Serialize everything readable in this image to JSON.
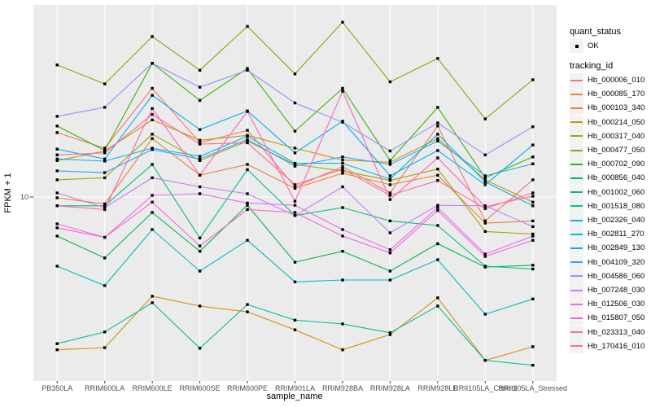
{
  "figure": {
    "background": "#FFFFFF",
    "panel_background": "#EBEBEB",
    "grid_color": "#FFFFFF",
    "point_color": "#000000",
    "tick_color": "#333333",
    "tick_label_color": "#4D4D4D"
  },
  "axes": {
    "x_title": "sample_name",
    "y_title": "FPKM + 1",
    "y_tick_labels": [
      "10"
    ]
  },
  "legend": {
    "quant_status": {
      "title": "quant_status",
      "items": [
        {
          "label": "OK",
          "symbol": "black-point"
        }
      ]
    },
    "tracking": {
      "title": "tracking_id"
    }
  },
  "chart_data": {
    "type": "line",
    "title": "",
    "xlabel": "sample_name",
    "ylabel": "FPKM + 1",
    "y_scale": "log10",
    "y_ticks": [
      10
    ],
    "ylim_approx": [
      1.1,
      100
    ],
    "grid": true,
    "legend_position": "right",
    "quant_status": "OK",
    "point_shape": "small-black-square",
    "x_categories": [
      "PB350LA",
      "RRIM600LA",
      "RRIM600LE",
      "RRIM600SE",
      "RRIM600PE",
      "RRIM901LA",
      "RRIM928BA",
      "RRIM928LA",
      "RRIM928LE",
      "RRII105LA_Control",
      "RRII105LA_Stressed"
    ],
    "series": [
      {
        "name": "Hb_000006_010",
        "color": "#F8766D",
        "values": [
          21.7,
          18.0,
          37.0,
          19.2,
          22.3,
          11.3,
          14.4,
          10.5,
          23.5,
          7.5,
          12.3
        ]
      },
      {
        "name": "Hb_000085_170",
        "color": "#EA8331",
        "values": [
          9.9,
          9.2,
          20.2,
          13.0,
          14.8,
          11.1,
          13.3,
          11.6,
          13.0,
          7.3,
          7.5
        ]
      },
      {
        "name": "Hb_000103_340",
        "color": "#D89000",
        "values": [
          1.59,
          1.63,
          3.03,
          2.69,
          2.51,
          2.02,
          1.59,
          1.91,
          2.97,
          1.4,
          1.65
        ]
      },
      {
        "name": "Hb_000214_050",
        "color": "#C09B00",
        "values": [
          15.5,
          17.4,
          25.3,
          19.8,
          21.0,
          18.0,
          15.6,
          15.2,
          20.2,
          12.3,
          9.4
        ]
      },
      {
        "name": "Hb_000317_040",
        "color": "#A3A500",
        "values": [
          12.3,
          12.6,
          21.3,
          15.5,
          19.6,
          14.8,
          13.7,
          12.2,
          14.0,
          6.6,
          6.4
        ]
      },
      {
        "name": "Hb_000477_050",
        "color": "#7CAE00",
        "values": [
          49.0,
          39.0,
          69.0,
          46.0,
          78.0,
          44.0,
          82.0,
          40.0,
          53.0,
          25.6,
          41.0
        ]
      },
      {
        "name": "Hb_000702_090",
        "color": "#39B600",
        "values": [
          23.5,
          17.5,
          50.0,
          32.0,
          47.0,
          22.1,
          37.0,
          15.5,
          29.4,
          12.6,
          16.2
        ]
      },
      {
        "name": "Hb_000856_040",
        "color": "#00BB4E",
        "values": [
          6.25,
          4.8,
          8.3,
          5.2,
          9.05,
          4.56,
          5.2,
          4.1,
          5.7,
          4.3,
          4.4
        ]
      },
      {
        "name": "Hb_001002_060",
        "color": "#00BF7D",
        "values": [
          9.0,
          9.0,
          14.8,
          6.1,
          13.9,
          8.0,
          8.8,
          7.5,
          7.1,
          4.35,
          4.2
        ]
      },
      {
        "name": "Hb_001518_080",
        "color": "#00C1A3",
        "values": [
          1.71,
          1.97,
          2.8,
          1.62,
          2.74,
          2.27,
          2.17,
          1.95,
          2.69,
          1.4,
          1.32
        ]
      },
      {
        "name": "Hb_002326_040",
        "color": "#00BFC4",
        "values": [
          4.35,
          3.44,
          6.76,
          4.1,
          5.94,
          3.6,
          3.68,
          3.68,
          4.7,
          2.44,
          2.93
        ]
      },
      {
        "name": "Hb_002811_270",
        "color": "#00BAE0",
        "values": [
          15.8,
          15.4,
          18.0,
          16.3,
          20.8,
          15.0,
          15.0,
          12.4,
          21.3,
          12.0,
          9.0
        ]
      },
      {
        "name": "Hb_002849_130",
        "color": "#00B0F6",
        "values": [
          17.8,
          15.8,
          34.0,
          22.5,
          28.2,
          17.0,
          24.9,
          12.9,
          17.5,
          11.6,
          18.7
        ]
      },
      {
        "name": "Hb_004109_320",
        "color": "#35A2FF",
        "values": [
          13.7,
          13.4,
          17.7,
          15.8,
          20.0,
          14.5,
          16.2,
          14.8,
          19.6,
          12.9,
          14.9
        ]
      },
      {
        "name": "Hb_004586_060",
        "color": "#9590FF",
        "values": [
          26.4,
          29.4,
          50.0,
          37.5,
          46.0,
          31.0,
          24.6,
          17.4,
          24.4,
          16.6,
          23.3
        ]
      },
      {
        "name": "Hb_007248_030",
        "color": "#C77CFF",
        "values": [
          10.5,
          8.8,
          12.6,
          11.3,
          10.4,
          8.0,
          11.3,
          6.5,
          9.05,
          9.0,
          7.0
        ]
      },
      {
        "name": "Hb_012506_030",
        "color": "#E76BF3",
        "values": [
          7.24,
          6.15,
          10.2,
          10.4,
          9.3,
          9.05,
          6.76,
          5.3,
          8.8,
          5.03,
          6.25
        ]
      },
      {
        "name": "Hb_015807_050",
        "color": "#FA62DB",
        "values": [
          6.9,
          6.15,
          9.4,
          5.55,
          8.6,
          8.3,
          6.25,
          5.1,
          8.5,
          4.89,
          5.94
        ]
      },
      {
        "name": "Hb_023313_040",
        "color": "#FF62BC",
        "values": [
          9.0,
          8.6,
          29.0,
          13.0,
          28.0,
          9.5,
          35.7,
          9.7,
          16.0,
          8.9,
          10.1
        ]
      },
      {
        "name": "Hb_170416_010",
        "color": "#FF6A98",
        "values": [
          16.6,
          17.0,
          27.0,
          18.9,
          19.2,
          11.6,
          14.0,
          10.2,
          12.2,
          8.7,
          10.5
        ]
      }
    ]
  }
}
